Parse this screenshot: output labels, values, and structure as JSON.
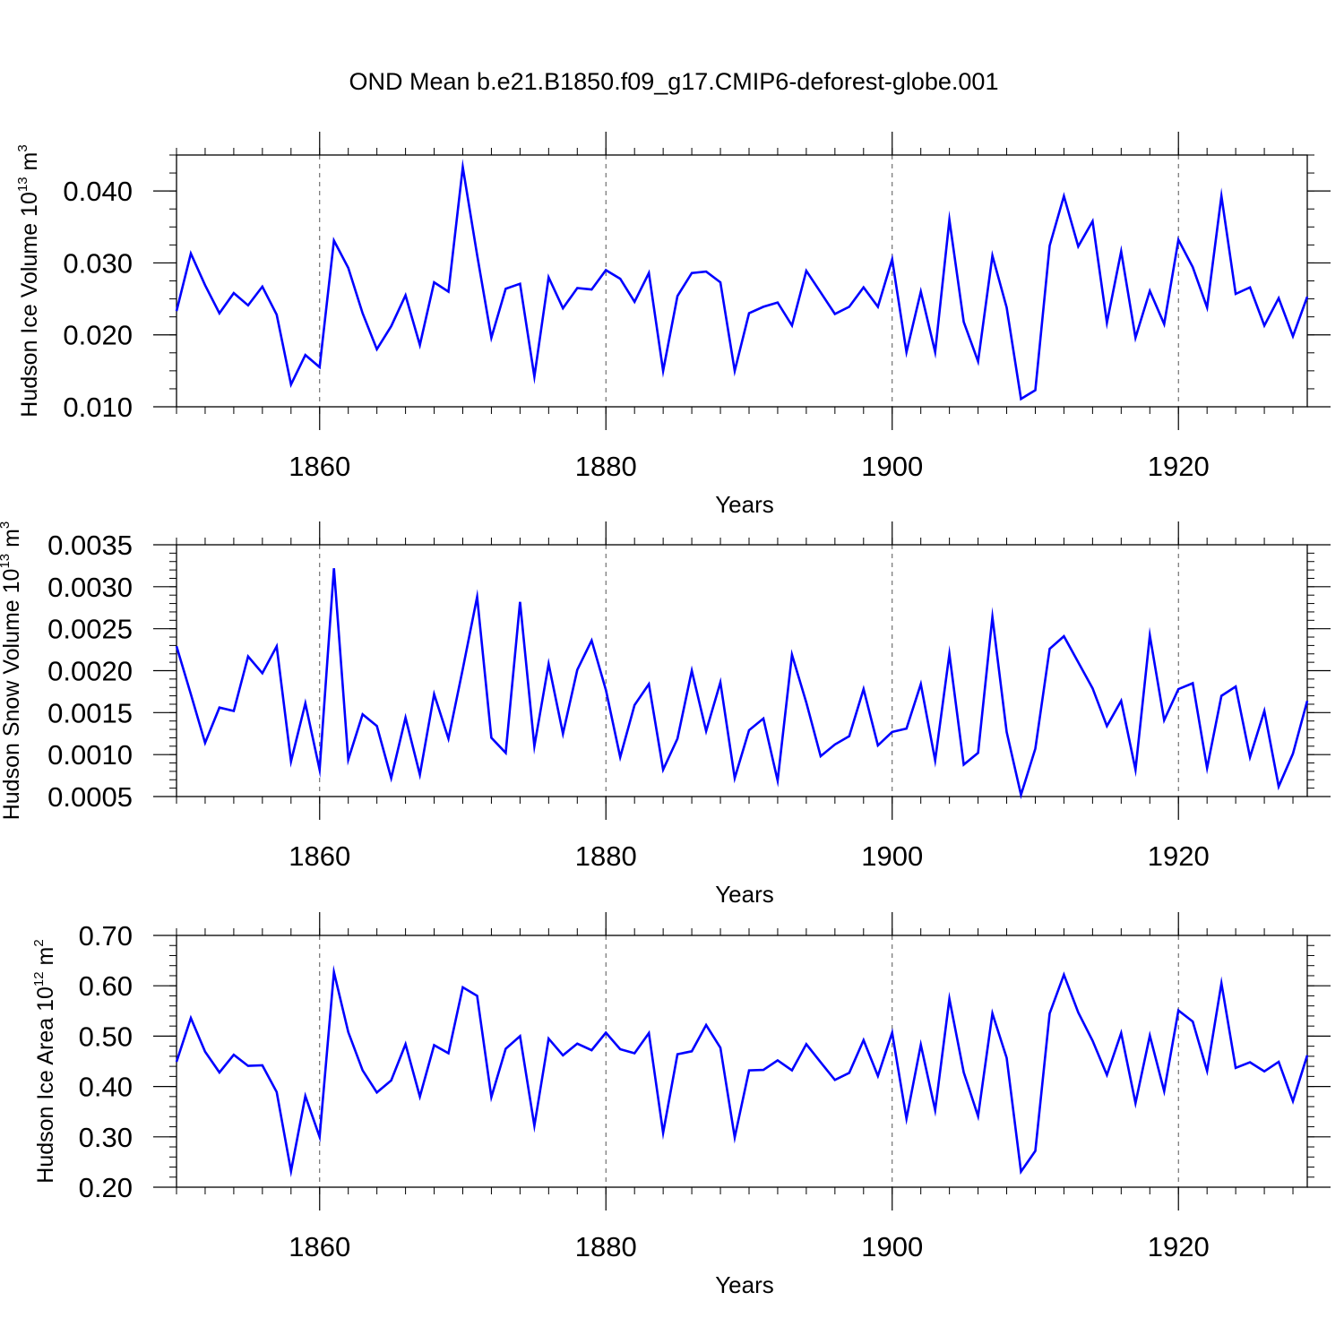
{
  "figure_title": "OND Mean b.e21.B1850.f09_g17.CMIP6-deforest-globe.001",
  "line_color": "#0000ff",
  "chart_data": [
    {
      "type": "line",
      "ylabel": {
        "main": "Hudson Ice Volume 10",
        "exp": "13",
        "unit": " m",
        "unit_exp": "3"
      },
      "xlabel": "Years",
      "xlim": [
        1850,
        1929
      ],
      "ylim": [
        0.01,
        0.045
      ],
      "yticks": [
        0.01,
        0.02,
        0.03,
        0.04
      ],
      "ytick_labels": [
        "0.010",
        "0.020",
        "0.030",
        "0.040"
      ],
      "xticks": [
        1860,
        1880,
        1900,
        1920
      ],
      "xtick_labels": [
        "1860",
        "1880",
        "1900",
        "1920"
      ],
      "grid": "vertical dashed at major x ticks",
      "series": [
        {
          "name": "Hudson Ice Volume",
          "x_start": 1850,
          "values": [
            0.0233,
            0.0313,
            0.0269,
            0.023,
            0.0258,
            0.0241,
            0.0267,
            0.0228,
            0.0131,
            0.0172,
            0.0155,
            0.0331,
            0.0293,
            0.023,
            0.018,
            0.0212,
            0.0255,
            0.0186,
            0.0273,
            0.026,
            0.0433,
            0.0311,
            0.0196,
            0.0264,
            0.0271,
            0.0142,
            0.028,
            0.0237,
            0.0265,
            0.0263,
            0.029,
            0.0278,
            0.0246,
            0.0286,
            0.015,
            0.0254,
            0.0286,
            0.0288,
            0.0273,
            0.015,
            0.023,
            0.0239,
            0.0245,
            0.0213,
            0.0289,
            0.0259,
            0.0229,
            0.0239,
            0.0266,
            0.0239,
            0.0305,
            0.0176,
            0.026,
            0.0176,
            0.036,
            0.0218,
            0.0163,
            0.031,
            0.0238,
            0.0111,
            0.0123,
            0.0324,
            0.0393,
            0.0323,
            0.0358,
            0.0217,
            0.0316,
            0.0196,
            0.0261,
            0.0215,
            0.0332,
            0.0294,
            0.0238,
            0.0393,
            0.0257,
            0.0266,
            0.0213,
            0.0251,
            0.0198,
            0.0253
          ]
        }
      ]
    },
    {
      "type": "line",
      "ylabel": {
        "main": "Hudson Snow Volume 10",
        "exp": "13",
        "unit": " m",
        "unit_exp": "3"
      },
      "xlabel": "Years",
      "xlim": [
        1850,
        1929
      ],
      "ylim": [
        0.0005,
        0.0035
      ],
      "yticks": [
        0.0005,
        0.001,
        0.0015,
        0.002,
        0.0025,
        0.003,
        0.0035
      ],
      "ytick_labels": [
        "0.0005",
        "0.0010",
        "0.0015",
        "0.0020",
        "0.0025",
        "0.0030",
        "0.0035"
      ],
      "xticks": [
        1860,
        1880,
        1900,
        1920
      ],
      "xtick_labels": [
        "1860",
        "1880",
        "1900",
        "1920"
      ],
      "grid": "vertical dashed at major x ticks",
      "series": [
        {
          "name": "Hudson Snow Volume",
          "x_start": 1850,
          "values": [
            0.00229,
            0.00172,
            0.00114,
            0.00156,
            0.00152,
            0.00217,
            0.00197,
            0.00229,
            0.00092,
            0.00161,
            0.00082,
            0.00322,
            0.00094,
            0.00148,
            0.00134,
            0.00072,
            0.00144,
            0.00076,
            0.00172,
            0.00119,
            0.00202,
            0.00288,
            0.0012,
            0.00102,
            0.00282,
            0.0011,
            0.00208,
            0.00125,
            0.00201,
            0.00236,
            0.00177,
            0.00097,
            0.00159,
            0.00184,
            0.00082,
            0.00119,
            0.002,
            0.00128,
            0.00186,
            0.00072,
            0.00129,
            0.00143,
            0.00069,
            0.00219,
            0.00162,
            0.00098,
            0.00112,
            0.00122,
            0.00178,
            0.00111,
            0.00127,
            0.00131,
            0.00184,
            0.00093,
            0.0022,
            0.00088,
            0.00102,
            0.00264,
            0.00127,
            0.00052,
            0.00107,
            0.00226,
            0.00241,
            0.0021,
            0.00179,
            0.00134,
            0.00164,
            0.00082,
            0.00242,
            0.00141,
            0.00178,
            0.00185,
            0.00084,
            0.0017,
            0.00181,
            0.00097,
            0.00152,
            0.00062,
            0.00101,
            0.00164
          ]
        }
      ]
    },
    {
      "type": "line",
      "ylabel": {
        "main": "Hudson Ice Area 10",
        "exp": "12",
        "unit": " m",
        "unit_exp": "2"
      },
      "xlabel": "Years",
      "xlim": [
        1850,
        1929
      ],
      "ylim": [
        0.2,
        0.7
      ],
      "yticks": [
        0.2,
        0.3,
        0.4,
        0.5,
        0.6,
        0.7
      ],
      "ytick_labels": [
        "0.20",
        "0.30",
        "0.40",
        "0.50",
        "0.60",
        "0.70"
      ],
      "xticks": [
        1860,
        1880,
        1900,
        1920
      ],
      "xtick_labels": [
        "1860",
        "1880",
        "1900",
        "1920"
      ],
      "grid": "vertical dashed at major x ticks",
      "series": [
        {
          "name": "Hudson Ice Area",
          "x_start": 1850,
          "values": [
            0.449,
            0.536,
            0.469,
            0.428,
            0.463,
            0.441,
            0.442,
            0.389,
            0.232,
            0.381,
            0.3,
            0.627,
            0.508,
            0.432,
            0.388,
            0.412,
            0.484,
            0.38,
            0.482,
            0.466,
            0.597,
            0.58,
            0.379,
            0.475,
            0.5,
            0.322,
            0.495,
            0.462,
            0.485,
            0.472,
            0.507,
            0.474,
            0.466,
            0.506,
            0.308,
            0.464,
            0.47,
            0.522,
            0.477,
            0.299,
            0.432,
            0.433,
            0.452,
            0.432,
            0.484,
            0.448,
            0.413,
            0.427,
            0.492,
            0.421,
            0.507,
            0.336,
            0.483,
            0.353,
            0.574,
            0.428,
            0.341,
            0.545,
            0.457,
            0.231,
            0.272,
            0.545,
            0.622,
            0.547,
            0.491,
            0.423,
            0.506,
            0.367,
            0.501,
            0.391,
            0.551,
            0.529,
            0.431,
            0.605,
            0.437,
            0.448,
            0.43,
            0.449,
            0.371,
            0.462
          ]
        }
      ]
    }
  ]
}
